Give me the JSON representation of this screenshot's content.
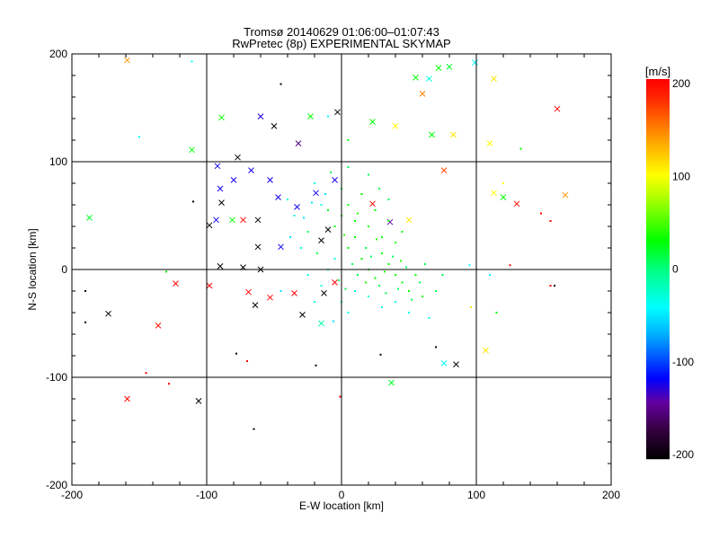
{
  "chart_data": {
    "type": "scatter",
    "title": "Tromsø 20140629 01:06:00–01:07:43",
    "subtitle": "RwPretec (8p) EXPERIMENTAL SKYMAP",
    "xlabel": "E-W location [km]",
    "ylabel": "N-S location [km]",
    "xlim": [
      -200,
      200
    ],
    "ylim": [
      -200,
      200
    ],
    "xticks": [
      "-200",
      "-100",
      "0",
      "100",
      "200"
    ],
    "yticks": [
      "-200",
      "-100",
      "0",
      "100",
      "200"
    ],
    "tick_values": [
      -200,
      -100,
      0,
      100,
      200
    ],
    "grid": [
      -100,
      0,
      100
    ],
    "colorbar": {
      "label": "[m/s]",
      "range": [
        -200,
        200
      ],
      "ticks": [
        "200",
        "100",
        "0",
        "-100",
        "-200"
      ],
      "tick_values": [
        200,
        100,
        0,
        -100,
        -200
      ]
    },
    "point_fields": [
      "x_km",
      "y_km",
      "velocity_m_s",
      "marker"
    ],
    "points": [
      [
        -159,
        -120,
        200,
        "x"
      ],
      [
        -106,
        -122,
        -200,
        "x"
      ],
      [
        -136,
        -52,
        190,
        "x"
      ],
      [
        -173,
        -41,
        -200,
        "x"
      ],
      [
        -123,
        -13,
        200,
        "x"
      ],
      [
        -187,
        48,
        20,
        "x"
      ],
      [
        -98,
        -15,
        200,
        "x"
      ],
      [
        -98,
        41,
        -200,
        "x"
      ],
      [
        -89,
        62,
        -200,
        "x"
      ],
      [
        -111,
        111,
        30,
        "x"
      ],
      [
        -89,
        141,
        30,
        "x"
      ],
      [
        -159,
        194,
        140,
        "x"
      ],
      [
        130,
        61,
        200,
        "x"
      ],
      [
        166,
        69,
        140,
        "x"
      ],
      [
        160,
        149,
        200,
        "x"
      ],
      [
        113,
        177,
        110,
        "x"
      ],
      [
        99,
        192,
        -40,
        "x"
      ],
      [
        85,
        -88,
        -200,
        "x"
      ],
      [
        76,
        -87,
        -40,
        "x"
      ],
      [
        37,
        -105,
        20,
        "x"
      ],
      [
        107,
        -75,
        110,
        "x"
      ],
      [
        -64,
        -33,
        -200,
        "x"
      ],
      [
        -53,
        -26,
        200,
        "x"
      ],
      [
        -69,
        -21,
        200,
        "x"
      ],
      [
        -35,
        -22,
        200,
        "x"
      ],
      [
        -13,
        -22,
        -200,
        "x"
      ],
      [
        -29,
        -42,
        -200,
        "x"
      ],
      [
        -15,
        -50,
        -10,
        "x"
      ],
      [
        -60,
        0,
        -200,
        "x"
      ],
      [
        -73,
        2,
        -200,
        "x"
      ],
      [
        -5,
        -12,
        200,
        "x"
      ],
      [
        23,
        61,
        200,
        "x"
      ],
      [
        36,
        44,
        -140,
        "x"
      ],
      [
        50,
        46,
        110,
        "x"
      ],
      [
        40,
        133,
        100,
        "x"
      ],
      [
        60,
        163,
        150,
        "x"
      ],
      [
        83,
        125,
        110,
        "x"
      ],
      [
        76,
        92,
        170,
        "x"
      ],
      [
        65,
        177,
        -30,
        "x"
      ],
      [
        55,
        178,
        30,
        "x"
      ],
      [
        72,
        187,
        30,
        "x"
      ],
      [
        80,
        188,
        20,
        "x"
      ],
      [
        67,
        125,
        30,
        "x"
      ],
      [
        110,
        117,
        100,
        "x"
      ],
      [
        113,
        71,
        100,
        "x"
      ],
      [
        120,
        67,
        30,
        "x"
      ],
      [
        23,
        137,
        30,
        "x"
      ],
      [
        -3,
        146,
        -200,
        "x"
      ],
      [
        -23,
        142,
        30,
        "x"
      ],
      [
        -32,
        117,
        -150,
        "x"
      ],
      [
        -50,
        133,
        -200,
        "x"
      ],
      [
        -60,
        142,
        -120,
        "x"
      ],
      [
        -67,
        92,
        -120,
        "x"
      ],
      [
        -80,
        83,
        -120,
        "x"
      ],
      [
        -90,
        75,
        -120,
        "x"
      ],
      [
        -92,
        96,
        -120,
        "x"
      ],
      [
        -77,
        104,
        -200,
        "x"
      ],
      [
        -53,
        83,
        -120,
        "x"
      ],
      [
        -47,
        67,
        -120,
        "x"
      ],
      [
        -33,
        58,
        -120,
        "x"
      ],
      [
        -19,
        71,
        -120,
        "x"
      ],
      [
        -5,
        83,
        -120,
        "x"
      ],
      [
        -10,
        37,
        -200,
        "x"
      ],
      [
        -15,
        27,
        -200,
        "x"
      ],
      [
        -62,
        46,
        -200,
        "x"
      ],
      [
        -62,
        21,
        -200,
        "x"
      ],
      [
        -45,
        21,
        -120,
        "x"
      ],
      [
        -81,
        46,
        30,
        "x"
      ],
      [
        -73,
        46,
        200,
        "x"
      ],
      [
        -93,
        46,
        -120,
        "x"
      ],
      [
        -90,
        3,
        -200,
        "x"
      ],
      [
        -1,
        -118,
        200,
        "d"
      ],
      [
        -19,
        -89,
        -200,
        "d"
      ],
      [
        -65,
        -148,
        -200,
        "d"
      ],
      [
        -145,
        -96,
        200,
        "d"
      ],
      [
        -128,
        -106,
        200,
        "d"
      ],
      [
        -190,
        -20,
        -200,
        "d"
      ],
      [
        -190,
        -49,
        -200,
        "d"
      ],
      [
        -110,
        63,
        -200,
        "d"
      ],
      [
        -78,
        -78,
        -200,
        "d"
      ],
      [
        -70,
        -85,
        200,
        "d"
      ],
      [
        29,
        -79,
        -200,
        "d"
      ],
      [
        70,
        -72,
        -200,
        "d"
      ],
      [
        96,
        -35,
        110,
        "d"
      ],
      [
        125,
        4,
        200,
        "d"
      ],
      [
        155,
        -15,
        200,
        "d"
      ],
      [
        158,
        -15,
        -200,
        "d"
      ],
      [
        155,
        45,
        200,
        "d"
      ],
      [
        148,
        52,
        200,
        "d"
      ],
      [
        95,
        4,
        -40,
        "d"
      ],
      [
        110,
        -5,
        -40,
        "d"
      ],
      [
        115,
        -40,
        30,
        "d"
      ],
      [
        -130,
        -2,
        30,
        "d"
      ],
      [
        -150,
        123,
        -40,
        "d"
      ],
      [
        -111,
        193,
        -40,
        "d"
      ],
      [
        -45,
        172,
        -200,
        "d"
      ],
      [
        -10,
        142,
        -40,
        "d"
      ],
      [
        5,
        120,
        30,
        "d"
      ],
      [
        120,
        80,
        100,
        "d"
      ],
      [
        133,
        112,
        30,
        "d"
      ],
      [
        5,
        20,
        30,
        "d"
      ],
      [
        10,
        30,
        30,
        "d"
      ],
      [
        15,
        10,
        30,
        "d"
      ],
      [
        20,
        0,
        30,
        "d"
      ],
      [
        25,
        -8,
        30,
        "d"
      ],
      [
        30,
        15,
        30,
        "d"
      ],
      [
        35,
        5,
        30,
        "d"
      ],
      [
        40,
        -5,
        30,
        "d"
      ],
      [
        45,
        -12,
        30,
        "d"
      ],
      [
        50,
        -20,
        30,
        "d"
      ],
      [
        55,
        -5,
        30,
        "d"
      ],
      [
        60,
        -25,
        30,
        "d"
      ],
      [
        0,
        50,
        30,
        "d"
      ],
      [
        5,
        60,
        30,
        "d"
      ],
      [
        10,
        45,
        30,
        "d"
      ],
      [
        -5,
        40,
        30,
        "d"
      ],
      [
        -10,
        55,
        30,
        "d"
      ],
      [
        15,
        70,
        30,
        "d"
      ],
      [
        20,
        40,
        30,
        "d"
      ],
      [
        25,
        55,
        30,
        "d"
      ],
      [
        30,
        30,
        30,
        "d"
      ],
      [
        35,
        45,
        30,
        "d"
      ],
      [
        40,
        25,
        30,
        "d"
      ],
      [
        45,
        35,
        30,
        "d"
      ],
      [
        -5,
        10,
        -30,
        "d"
      ],
      [
        -10,
        0,
        -30,
        "d"
      ],
      [
        -15,
        -15,
        -30,
        "d"
      ],
      [
        -20,
        -30,
        -30,
        "d"
      ],
      [
        -25,
        -5,
        -30,
        "d"
      ],
      [
        -30,
        20,
        -30,
        "d"
      ],
      [
        -35,
        50,
        -30,
        "d"
      ],
      [
        -40,
        65,
        -30,
        "d"
      ],
      [
        -20,
        80,
        -30,
        "d"
      ],
      [
        -15,
        60,
        -30,
        "d"
      ],
      [
        0,
        -30,
        -30,
        "d"
      ],
      [
        5,
        -40,
        -30,
        "d"
      ],
      [
        10,
        -20,
        -30,
        "d"
      ],
      [
        20,
        -25,
        -30,
        "d"
      ],
      [
        30,
        -35,
        -30,
        "d"
      ],
      [
        40,
        -30,
        -30,
        "d"
      ],
      [
        50,
        -40,
        -30,
        "d"
      ],
      [
        65,
        -45,
        -30,
        "d"
      ],
      [
        8,
        5,
        10,
        "d"
      ],
      [
        12,
        -5,
        10,
        "d"
      ],
      [
        18,
        20,
        10,
        "d"
      ],
      [
        22,
        12,
        10,
        "d"
      ],
      [
        28,
        -15,
        10,
        "d"
      ],
      [
        33,
        -22,
        10,
        "d"
      ],
      [
        38,
        12,
        10,
        "d"
      ],
      [
        42,
        -18,
        10,
        "d"
      ],
      [
        48,
        2,
        10,
        "d"
      ],
      [
        52,
        -28,
        10,
        "d"
      ],
      [
        58,
        -12,
        10,
        "d"
      ],
      [
        62,
        5,
        10,
        "d"
      ],
      [
        0,
        75,
        10,
        "d"
      ],
      [
        -8,
        90,
        10,
        "d"
      ],
      [
        5,
        95,
        10,
        "d"
      ],
      [
        20,
        88,
        10,
        "d"
      ],
      [
        28,
        75,
        10,
        "d"
      ],
      [
        35,
        65,
        10,
        "d"
      ],
      [
        -25,
        35,
        10,
        "d"
      ],
      [
        -18,
        15,
        10,
        "d"
      ],
      [
        -2,
        -10,
        10,
        "d"
      ],
      [
        3,
        -18,
        10,
        "d"
      ],
      [
        70,
        -20,
        10,
        "d"
      ],
      [
        75,
        -5,
        10,
        "d"
      ],
      [
        2,
        32,
        40,
        "d"
      ],
      [
        12,
        52,
        40,
        "d"
      ],
      [
        18,
        -12,
        40,
        "d"
      ],
      [
        26,
        28,
        40,
        "d"
      ],
      [
        32,
        -2,
        40,
        "d"
      ],
      [
        44,
        8,
        40,
        "d"
      ],
      [
        -28,
        48,
        -50,
        "d"
      ],
      [
        -22,
        62,
        -50,
        "d"
      ],
      [
        -12,
        70,
        -50,
        "d"
      ],
      [
        -38,
        30,
        -50,
        "d"
      ],
      [
        -6,
        -48,
        -50,
        "d"
      ],
      [
        -45,
        -20,
        -50,
        "d"
      ]
    ]
  }
}
